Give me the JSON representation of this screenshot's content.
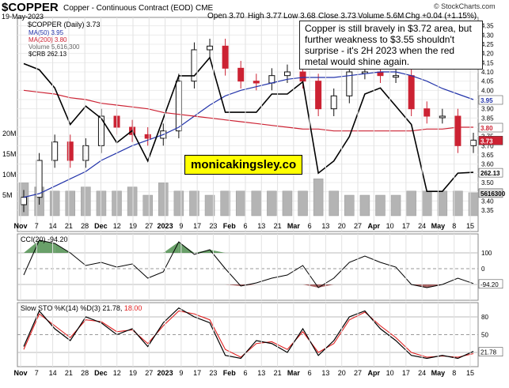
{
  "header": {
    "symbol": "$COPPER",
    "description": "Copper - Continuous Contract (EOD)",
    "exchange": "CME",
    "date": "19-May-2023",
    "open": "Open 3.70",
    "high": "High 3.77",
    "low": "Low 3.68",
    "close": "Close 3.73",
    "volume": "Volume 5.6M",
    "chg": "Chg +0.04 (+1.15%)",
    "source": "© StockCharts.com"
  },
  "annotation": "Copper is still bravely in $3.72 area, but further weakness to $3.55 shouldn't surprise - it's 2H 2023 when the red metal would shine again.",
  "watermark": "monicakingsley.co",
  "legend": {
    "main": "$COPPER (Daily) 3.73",
    "ma50": "MA(50) 3.95",
    "ma200": "MA(200) 3.80",
    "volume": "Volume 5,616,300",
    "crb": "$CRB 262.13",
    "cci": "CCI(20) -94.20",
    "sto_prefix": "Slow STO %K(14) %D(3) 21.78,",
    "sto_d": "18.00"
  },
  "colors": {
    "up_candle": "#111111",
    "down_candle": "#cc2233",
    "ma50": "#2233aa",
    "ma200": "#cc2233",
    "crb": "#000000",
    "volume": "#b4b4b4",
    "cci_pos_fill": "#4f8f4f",
    "cci_neg_fill": "#9a4a4a",
    "sto_k": "#000000",
    "sto_d": "#e02020",
    "last_price_badge": "#cc2233"
  },
  "chart_data": [
    {
      "type": "candlestick",
      "title": "$COPPER (Daily) 3.73",
      "x_ticks": [
        "Nov",
        "7",
        "14",
        "21",
        "28",
        "Dec",
        "12",
        "19",
        "27",
        "2023",
        "9",
        "17",
        "23",
        "Feb",
        "6",
        "13",
        "21",
        "Mar",
        "6",
        "13",
        "20",
        "27",
        "Apr",
        "10",
        "17",
        "24",
        "May",
        "8",
        "15"
      ],
      "y_ticks": [
        3.35,
        3.4,
        3.45,
        3.5,
        3.55,
        3.6,
        3.65,
        3.7,
        3.75,
        3.8,
        3.85,
        3.9,
        3.95,
        4.0,
        4.05,
        4.1,
        4.15,
        4.2,
        4.25,
        4.3,
        4.35
      ],
      "ylim": [
        3.32,
        4.37
      ],
      "volume_ticks": [
        "5M",
        "10M",
        "15M",
        "20M"
      ],
      "series": [
        {
          "name": "$COPPER",
          "kind": "close_approx",
          "x": [
            "Nov 1",
            "Nov 7",
            "Nov 14",
            "Nov 21",
            "Nov 28",
            "Dec 5",
            "Dec 12",
            "Dec 19",
            "Dec 27",
            "Jan 3",
            "Jan 9",
            "Jan 17",
            "Jan 23",
            "Jan 30",
            "Feb 6",
            "Feb 13",
            "Feb 21",
            "Feb 28",
            "Mar 6",
            "Mar 13",
            "Mar 20",
            "Mar 27",
            "Apr 3",
            "Apr 10",
            "Apr 17",
            "Apr 24",
            "May 1",
            "May 8",
            "May 15",
            "May 19"
          ],
          "values": [
            3.42,
            3.62,
            3.72,
            3.62,
            3.7,
            3.86,
            3.8,
            3.76,
            3.74,
            3.78,
            4.05,
            4.22,
            4.24,
            4.12,
            4.05,
            4.04,
            4.08,
            4.1,
            4.05,
            3.9,
            3.97,
            4.1,
            4.1,
            4.08,
            4.08,
            3.9,
            3.86,
            3.86,
            3.7,
            3.73
          ]
        },
        {
          "name": "MA(50)",
          "values": [
            3.42,
            3.44,
            3.48,
            3.52,
            3.56,
            3.62,
            3.66,
            3.7,
            3.73,
            3.76,
            3.8,
            3.86,
            3.92,
            3.97,
            4.0,
            4.02,
            4.04,
            4.06,
            4.07,
            4.07,
            4.07,
            4.08,
            4.09,
            4.1,
            4.1,
            4.08,
            4.05,
            4.01,
            3.98,
            3.95
          ]
        },
        {
          "name": "MA(200)",
          "values": [
            4.0,
            3.99,
            3.98,
            3.96,
            3.95,
            3.93,
            3.92,
            3.91,
            3.9,
            3.88,
            3.87,
            3.86,
            3.85,
            3.84,
            3.83,
            3.82,
            3.81,
            3.8,
            3.79,
            3.79,
            3.78,
            3.78,
            3.78,
            3.78,
            3.78,
            3.78,
            3.79,
            3.79,
            3.8,
            3.8
          ]
        },
        {
          "name": "$CRB",
          "values": [
            280,
            279,
            276,
            270,
            273,
            271,
            267,
            269,
            264,
            271,
            278,
            278,
            281,
            272,
            272,
            272,
            275,
            275,
            277,
            262,
            264,
            268,
            275,
            276,
            273,
            270,
            259,
            259,
            262,
            262.13
          ]
        },
        {
          "name": "Volume",
          "unit": "M",
          "values": [
            8,
            7,
            6,
            6,
            7,
            6,
            6,
            7,
            5,
            8,
            6,
            6,
            5,
            6,
            6,
            6,
            6,
            6,
            6,
            9,
            6,
            5,
            5,
            5,
            5,
            6,
            6,
            6,
            6,
            5.6
          ]
        }
      ],
      "last_values": {
        "price": "3.73",
        "ma50": "3.95",
        "ma200": "3.80",
        "crb": "262.13",
        "volume": "5616300"
      }
    },
    {
      "type": "line",
      "title": "CCI(20) -94.20",
      "y_ticks": [
        -100,
        0,
        100
      ],
      "ylim": [
        -180,
        200
      ],
      "values": [
        -40,
        180,
        160,
        100,
        20,
        40,
        10,
        30,
        -60,
        -20,
        170,
        90,
        120,
        0,
        -110,
        -90,
        -60,
        -40,
        20,
        -120,
        -60,
        40,
        80,
        40,
        10,
        -100,
        -120,
        -100,
        -60,
        -94.2
      ]
    },
    {
      "type": "line",
      "title": "Slow STO %K(14) %D(3) 21.78, 18.00",
      "y_ticks": [
        20,
        50,
        80
      ],
      "ylim": [
        0,
        100
      ],
      "series": [
        {
          "name": "%K",
          "values": [
            30,
            90,
            60,
            40,
            80,
            70,
            50,
            60,
            30,
            70,
            95,
            80,
            70,
            15,
            10,
            40,
            35,
            20,
            60,
            15,
            40,
            80,
            90,
            60,
            40,
            15,
            10,
            15,
            10,
            21.78
          ]
        },
        {
          "name": "%D",
          "values": [
            25,
            85,
            65,
            45,
            75,
            72,
            55,
            58,
            35,
            65,
            90,
            85,
            75,
            25,
            12,
            35,
            38,
            25,
            55,
            20,
            35,
            75,
            88,
            65,
            45,
            20,
            12,
            14,
            12,
            18.0
          ]
        }
      ],
      "last_values": {
        "k": "21.78",
        "d": "18.00"
      }
    }
  ]
}
